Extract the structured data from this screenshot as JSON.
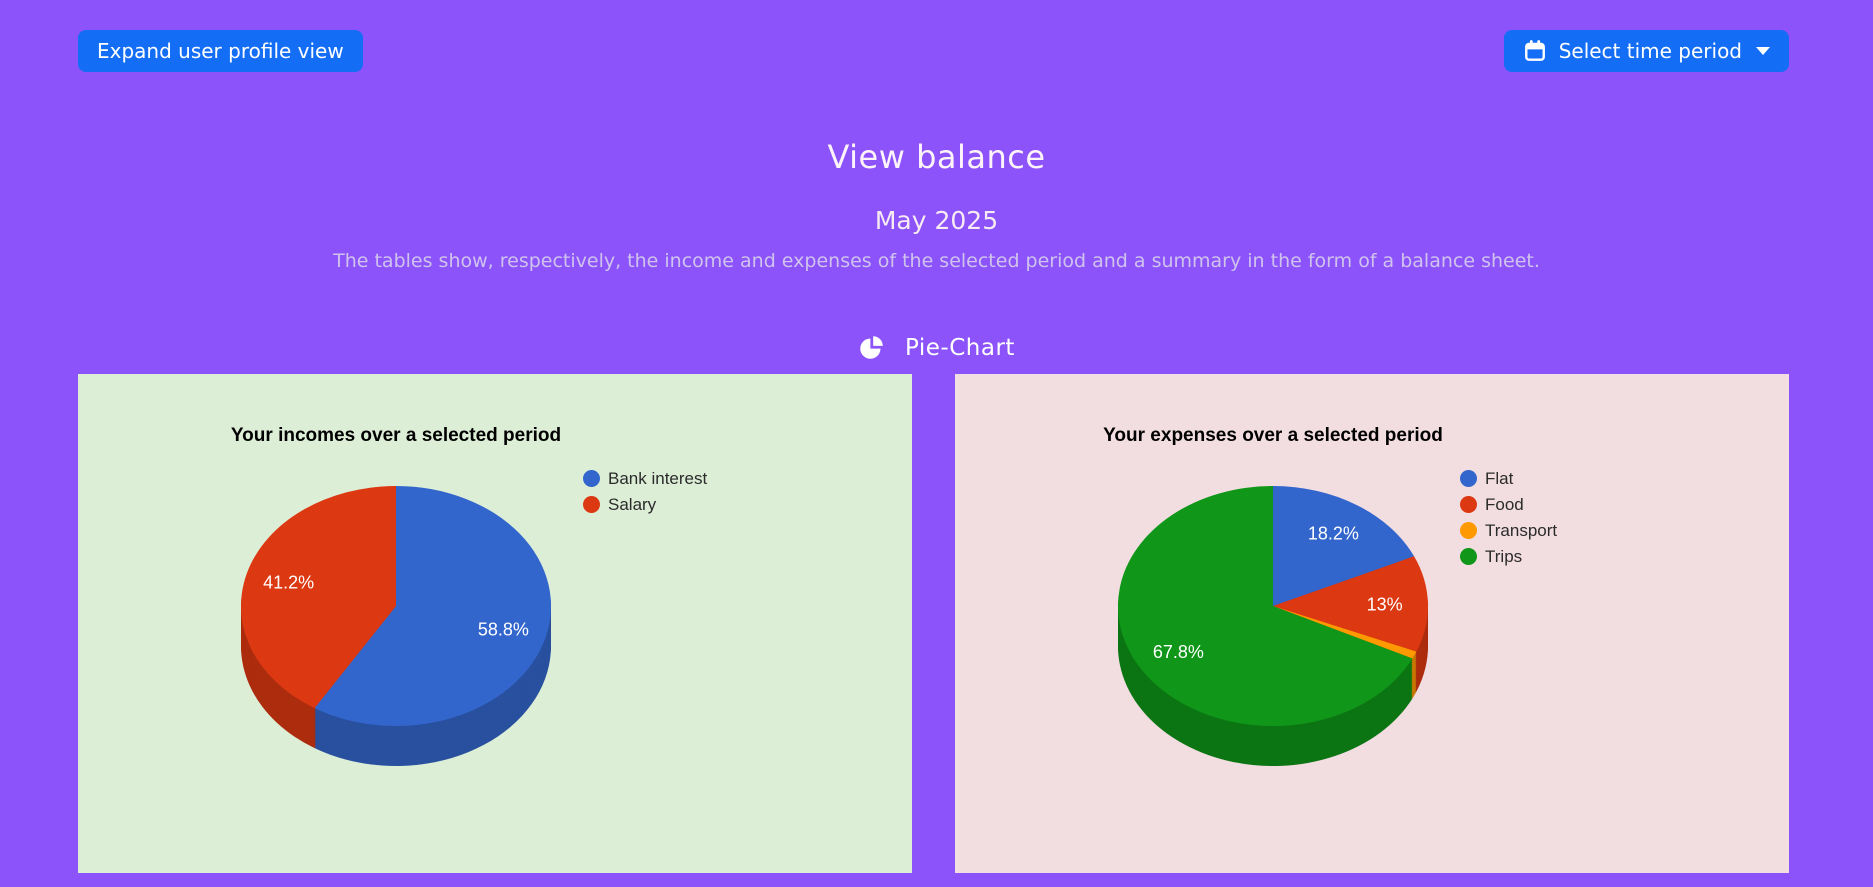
{
  "page": {
    "background": "#8c53fa",
    "accent_blue": "#136ef5"
  },
  "header": {
    "expand_button": {
      "label": "Expand user profile view"
    },
    "time_period_button": {
      "label": "Select time period",
      "icon": "calendar-icon",
      "caret": "chevron-down"
    }
  },
  "balance": {
    "title": "View balance",
    "period": "May 2025",
    "description": "The tables show, respectively, the income and expenses of the selected period and a summary in the form of a balance sheet."
  },
  "section": {
    "title": "Pie-Chart",
    "icon": "pie-chart-icon"
  },
  "chart_data": [
    {
      "type": "pie",
      "is3d": true,
      "title": "Your incomes over a selected period",
      "labels": [
        "Bank interest",
        "Salary"
      ],
      "values": [
        58.8,
        41.2
      ],
      "display_labels": [
        "58.8%",
        "41.2%"
      ],
      "colors": [
        "#3366CC",
        "#DC3912"
      ],
      "background": "#ddeed7",
      "legend_position": "right",
      "start_angle_deg": 0,
      "direction": "clockwise"
    },
    {
      "type": "pie",
      "is3d": true,
      "title": "Your expenses over a selected period",
      "labels": [
        "Flat",
        "Food",
        "Transport",
        "Trips"
      ],
      "values": [
        18.2,
        13,
        1,
        67.8
      ],
      "display_labels": [
        "18.2%",
        "13%",
        "",
        "67.8%"
      ],
      "colors": [
        "#3366CC",
        "#DC3912",
        "#FF9900",
        "#109618"
      ],
      "background": "#f2dee1",
      "legend_position": "right",
      "start_angle_deg": 0,
      "direction": "clockwise"
    }
  ]
}
